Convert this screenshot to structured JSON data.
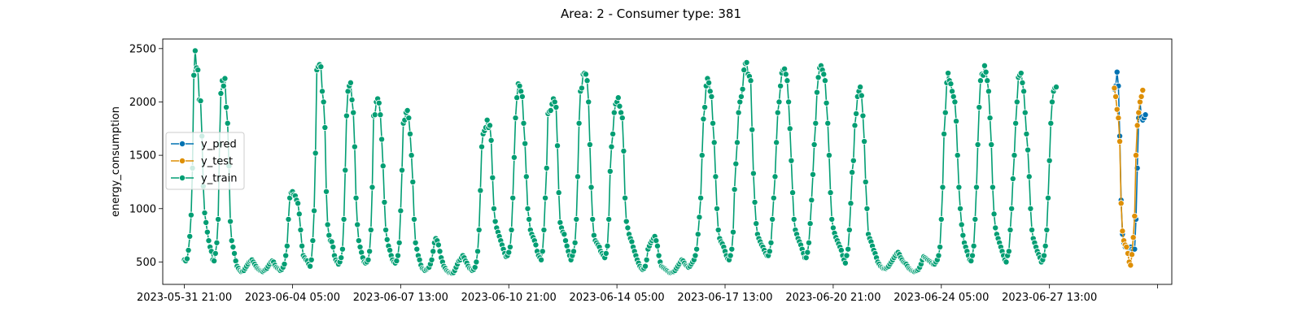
{
  "chart_data": {
    "type": "line",
    "title": "Area: 2 - Consumer type: 381",
    "xlabel": "",
    "ylabel": "energy_consumption",
    "ylim": [
      290,
      2590
    ],
    "grid": false,
    "legend_position": "center-left",
    "y_ticks": [
      500,
      1000,
      1500,
      2000,
      2500
    ],
    "x_ticks": [
      "2023-05-31 21:00",
      "2023-06-04 05:00",
      "2023-06-07 13:00",
      "2023-06-10 21:00",
      "2023-06-14 05:00",
      "2023-06-17 13:00",
      "2023-06-20 21:00",
      "2023-06-24 05:00",
      "2023-06-27 13:00",
      ""
    ],
    "series": [
      {
        "name": "y_pred",
        "color": "#0072b2",
        "x": [
          "2023-06-29 13:00",
          "2023-06-29 14:00",
          "2023-06-29 15:00",
          "2023-06-29 16:00",
          "2023-06-29 17:00",
          "2023-06-29 18:00",
          "2023-06-29 19:00",
          "2023-06-29 20:00",
          "2023-06-29 21:00",
          "2023-06-29 22:00",
          "2023-06-29 23:00",
          "2023-06-30 00:00",
          "2023-06-30 01:00",
          "2023-06-30 02:00",
          "2023-06-30 03:00",
          "2023-06-30 04:00",
          "2023-06-30 05:00",
          "2023-06-30 06:00",
          "2023-06-30 07:00",
          "2023-06-30 08:00",
          "2023-06-30 09:00",
          "2023-06-30 10:00",
          "2023-06-30 11:00",
          "2023-06-30 12:00"
        ],
        "values": [
          2120,
          2150,
          2280,
          2150,
          1680,
          1080,
          760,
          680,
          640,
          650,
          630,
          600,
          640,
          620,
          610,
          620,
          900,
          1380,
          1850,
          2000,
          1860,
          1830,
          1850,
          1880
        ]
      },
      {
        "name": "y_test",
        "color": "#de8f05",
        "x": [
          "2023-06-29 13:00",
          "2023-06-29 14:00",
          "2023-06-29 15:00",
          "2023-06-29 16:00",
          "2023-06-29 17:00",
          "2023-06-29 18:00",
          "2023-06-29 19:00",
          "2023-06-29 20:00",
          "2023-06-29 21:00",
          "2023-06-29 22:00",
          "2023-06-29 23:00",
          "2023-06-30 00:00",
          "2023-06-30 01:00",
          "2023-06-30 02:00",
          "2023-06-30 03:00",
          "2023-06-30 04:00",
          "2023-06-30 05:00",
          "2023-06-30 06:00",
          "2023-06-30 07:00",
          "2023-06-30 08:00",
          "2023-06-30 09:00",
          "2023-06-30 10:00"
        ],
        "values": [
          2130,
          2050,
          1930,
          1850,
          1630,
          1050,
          790,
          700,
          660,
          640,
          580,
          500,
          470,
          570,
          730,
          930,
          1500,
          1780,
          1900,
          2000,
          2050,
          2110
        ]
      },
      {
        "name": "y_train",
        "color": "#029e73",
        "x_start": "2023-05-31 21:00",
        "step_hours": 1,
        "values": [
          520,
          510,
          530,
          610,
          740,
          940,
          1380,
          2250,
          2480,
          2320,
          2300,
          2020,
          2010,
          1680,
          1210,
          960,
          870,
          780,
          700,
          640,
          600,
          520,
          510,
          580,
          680,
          900,
          1600,
          2080,
          2200,
          2150,
          2220,
          1950,
          1800,
          1400,
          880,
          700,
          640,
          580,
          510,
          460,
          440,
          420,
          410,
          415,
          420,
          440,
          460,
          480,
          500,
          510,
          520,
          500,
          480,
          460,
          440,
          430,
          420,
          415,
          410,
          420,
          430,
          440,
          460,
          480,
          500,
          510,
          500,
          470,
          450,
          440,
          430,
          420,
          430,
          450,
          480,
          560,
          650,
          900,
          1100,
          1150,
          1160,
          1130,
          1120,
          1080,
          1050,
          950,
          800,
          650,
          560,
          540,
          520,
          510,
          480,
          460,
          520,
          700,
          980,
          1520,
          2300,
          2330,
          2350,
          2330,
          2100,
          2000,
          1760,
          1160,
          850,
          750,
          700,
          690,
          640,
          560,
          520,
          500,
          480,
          500,
          540,
          620,
          900,
          1360,
          1870,
          2100,
          2150,
          2180,
          2020,
          1900,
          1580,
          1100,
          850,
          700,
          640,
          590,
          540,
          500,
          490,
          500,
          520,
          600,
          800,
          1200,
          1870,
          1880,
          2000,
          2030,
          1990,
          1880,
          1650,
          1400,
          1060,
          800,
          710,
          650,
          610,
          560,
          520,
          500,
          490,
          510,
          560,
          680,
          980,
          1360,
          1800,
          1830,
          1900,
          1920,
          1850,
          1700,
          1500,
          1250,
          900,
          680,
          620,
          560,
          520,
          470,
          440,
          430,
          420,
          430,
          440,
          450,
          480,
          520,
          600,
          680,
          720,
          700,
          660,
          600,
          540,
          500,
          460,
          440,
          420,
          410,
          400,
          400,
          395,
          400,
          420,
          450,
          480,
          510,
          520,
          540,
          560,
          540,
          510,
          490,
          460,
          440,
          430,
          420,
          430,
          450,
          500,
          600,
          800,
          1170,
          1580,
          1700,
          1730,
          1760,
          1830,
          1760,
          1780,
          1640,
          1290,
          1000,
          880,
          820,
          780,
          740,
          700,
          660,
          620,
          580,
          550,
          560,
          590,
          640,
          800,
          1100,
          1480,
          1850,
          2040,
          2170,
          2150,
          2100,
          2050,
          1800,
          1610,
          1300,
          1000,
          900,
          800,
          760,
          730,
          700,
          660,
          600,
          560,
          540,
          520,
          600,
          800,
          1100,
          1380,
          1890,
          1910,
          1920,
          1980,
          2030,
          2000,
          1950,
          1590,
          1150,
          870,
          820,
          780,
          760,
          700,
          650,
          600,
          560,
          520,
          560,
          600,
          680,
          900,
          1300,
          1800,
          2100,
          2130,
          2260,
          2270,
          2260,
          2200,
          2000,
          1600,
          1200,
          900,
          750,
          700,
          680,
          660,
          640,
          600,
          580,
          560,
          540,
          580,
          650,
          900,
          1350,
          1580,
          1700,
          1900,
          1980,
          2000,
          2040,
          1960,
          1900,
          1850,
          1540,
          1100,
          880,
          820,
          760,
          720,
          690,
          640,
          600,
          560,
          520,
          490,
          460,
          440,
          430,
          440,
          460,
          520,
          620,
          650,
          680,
          700,
          720,
          740,
          700,
          650,
          560,
          500,
          460,
          450,
          440,
          430,
          420,
          410,
          400,
          400,
          405,
          410,
          420,
          440,
          460,
          480,
          500,
          520,
          510,
          490,
          470,
          460,
          450,
          460,
          480,
          500,
          520,
          560,
          620,
          760,
          920,
          1100,
          1500,
          1840,
          1950,
          2150,
          2220,
          2180,
          2100,
          2050,
          1800,
          1620,
          1300,
          1000,
          800,
          720,
          690,
          670,
          640,
          600,
          560,
          530,
          520,
          560,
          620,
          780,
          1180,
          1420,
          1620,
          1900,
          2000,
          2050,
          2120,
          2300,
          2360,
          2370,
          2260,
          2240,
          2200,
          1740,
          1330,
          1060,
          860,
          760,
          720,
          690,
          660,
          640,
          610,
          580,
          560,
          560,
          600,
          680,
          900,
          1100,
          1300,
          1620,
          1900,
          2000,
          2150,
          2270,
          2300,
          2310,
          2260,
          2200,
          2000,
          1750,
          1450,
          1150,
          900,
          800,
          760,
          720,
          690,
          660,
          620,
          580,
          540,
          540,
          590,
          680,
          860,
          1080,
          1320,
          1600,
          1800,
          2090,
          2230,
          2320,
          2340,
          2300,
          2260,
          2200,
          1990,
          1800,
          1500,
          1150,
          900,
          820,
          770,
          730,
          700,
          670,
          640,
          610,
          560,
          520,
          490,
          560,
          620,
          800,
          1050,
          1340,
          1450,
          1780,
          1890,
          2050,
          2100,
          2140,
          2060,
          1870,
          1630,
          1250,
          1000,
          760,
          720,
          690,
          650,
          610,
          580,
          540,
          500,
          480,
          460,
          450,
          440,
          440,
          440,
          450,
          460,
          480,
          500,
          520,
          540,
          560,
          580,
          590,
          570,
          540,
          520,
          500,
          490,
          480,
          460,
          440,
          430,
          420,
          415,
          410,
          415,
          420,
          430,
          450,
          480,
          520,
          550,
          540,
          530,
          520,
          510,
          500,
          490,
          480,
          480,
          500,
          520,
          560,
          640,
          900,
          1200,
          1700,
          1900,
          2180,
          2270,
          2200,
          2170,
          2100,
          2050,
          2000,
          1820,
          1500,
          1200,
          1000,
          850,
          750,
          680,
          640,
          600,
          560,
          520,
          510,
          560,
          650,
          900,
          1200,
          1600,
          1950,
          2200,
          2260,
          2250,
          2340,
          2280,
          2200,
          2100,
          1850,
          1600,
          1200,
          950,
          820,
          760,
          720,
          680,
          640,
          600,
          560,
          520,
          500,
          560,
          600,
          800,
          1000,
          1280,
          1500,
          1800,
          2000,
          2230,
          2250,
          2270,
          2180,
          2100,
          1900,
          1700,
          1550,
          1300,
          1000,
          800,
          720,
          680,
          640,
          600,
          570,
          540,
          500,
          520,
          560,
          650,
          800,
          1100,
          1450,
          1800,
          2000,
          2100,
          2130,
          2140
        ]
      }
    ]
  }
}
